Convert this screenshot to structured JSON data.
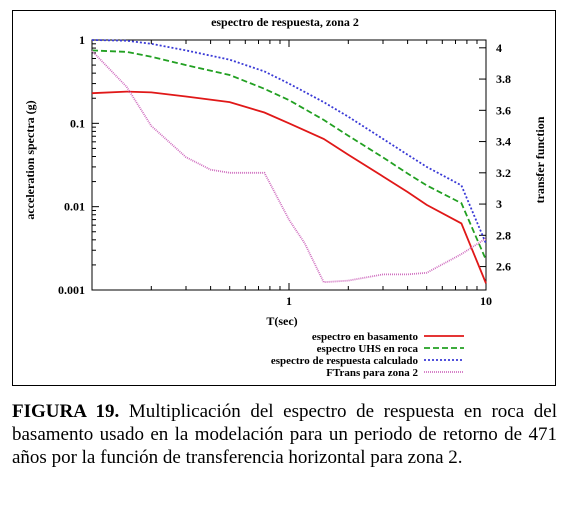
{
  "chart_data": {
    "type": "line",
    "title": "espectro de respuesta, zona 2",
    "xlabel": "T(sec)",
    "ylabel": "acceleration spectra (g)",
    "y2label": "transfer function",
    "xscale": "log",
    "yscale": "log",
    "xlim": [
      0.1,
      10
    ],
    "ylim": [
      0.001,
      1
    ],
    "y2lim": [
      2.45,
      4.05
    ],
    "x_ticks": [
      {
        "v": 1,
        "label": "1"
      },
      {
        "v": 10,
        "label": "10"
      }
    ],
    "y_ticks": [
      {
        "v": 1,
        "label": "1"
      },
      {
        "v": 0.1,
        "label": "0.1"
      },
      {
        "v": 0.01,
        "label": "0.01"
      },
      {
        "v": 0.001,
        "label": "0.001"
      }
    ],
    "y2_ticks": [
      {
        "v": 4,
        "label": "4"
      },
      {
        "v": 3.8,
        "label": "3.8"
      },
      {
        "v": 3.6,
        "label": "3.6"
      },
      {
        "v": 3.4,
        "label": "3.4"
      },
      {
        "v": 3.2,
        "label": "3.2"
      },
      {
        "v": 3,
        "label": "3"
      },
      {
        "v": 2.8,
        "label": "2.8"
      },
      {
        "v": 2.6,
        "label": "2.6"
      }
    ],
    "grid": false,
    "legend_position": "bottom-right",
    "series": [
      {
        "name": "espectro en basamento",
        "color": "#e01818",
        "dash": "",
        "axis": "left",
        "x": [
          0.1,
          0.15,
          0.2,
          0.3,
          0.5,
          0.75,
          1.0,
          1.5,
          2.0,
          3.0,
          4.0,
          5.0,
          7.5,
          10.0
        ],
        "y": [
          0.23,
          0.24,
          0.235,
          0.21,
          0.18,
          0.135,
          0.1,
          0.065,
          0.042,
          0.023,
          0.015,
          0.0105,
          0.0063,
          0.0012
        ]
      },
      {
        "name": "espectro UHS en roca",
        "color": "#22a022",
        "dash": "6,3",
        "axis": "left",
        "x": [
          0.1,
          0.15,
          0.2,
          0.3,
          0.5,
          0.75,
          1.0,
          1.5,
          2.0,
          3.0,
          4.0,
          5.0,
          7.5,
          10.0
        ],
        "y": [
          0.75,
          0.72,
          0.63,
          0.5,
          0.38,
          0.26,
          0.19,
          0.11,
          0.071,
          0.039,
          0.025,
          0.018,
          0.011,
          0.0023
        ]
      },
      {
        "name": "espectro de respuesta calculado",
        "color": "#3a3ad6",
        "dash": "2,2",
        "axis": "left",
        "x": [
          0.1,
          0.15,
          0.2,
          0.3,
          0.5,
          0.75,
          1.0,
          1.5,
          2.0,
          3.0,
          4.0,
          5.0,
          7.5,
          10.0
        ],
        "y": [
          1.0,
          0.98,
          0.9,
          0.75,
          0.58,
          0.42,
          0.3,
          0.18,
          0.12,
          0.065,
          0.042,
          0.03,
          0.018,
          0.0036
        ]
      },
      {
        "name": "FTrans para zona 2",
        "color": "#d070c0",
        "dash": "1,1",
        "axis": "right",
        "x": [
          0.1,
          0.15,
          0.2,
          0.3,
          0.4,
          0.5,
          0.75,
          1.0,
          1.2,
          1.5,
          2.0,
          3.0,
          4.0,
          5.0,
          7.5,
          10.0
        ],
        "y": [
          3.98,
          3.75,
          3.5,
          3.3,
          3.22,
          3.2,
          3.2,
          2.9,
          2.75,
          2.5,
          2.51,
          2.55,
          2.55,
          2.56,
          2.68,
          2.78
        ]
      }
    ]
  },
  "caption": {
    "label": "FIGURA 19.",
    "text": " Multiplicación del espectro de respuesta en roca del basamento usado en la modelación para un periodo de retorno de 471 años por la función de transferencia horizontal para zona 2."
  }
}
